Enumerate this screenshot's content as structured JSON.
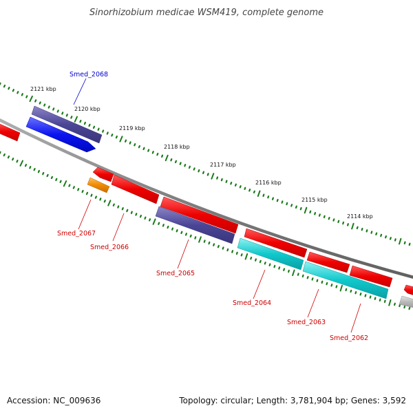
{
  "title": "Sinorhizobium medicae WSM419, complete genome",
  "footer": {
    "accession": "Accession: NC_009636",
    "summary": "Topology: circular; Length: 3,781,904 bp; Genes: 3,592"
  },
  "ticks": [
    "2121 kbp",
    "2120 kbp",
    "2119 kbp",
    "2118 kbp",
    "2117 kbp",
    "2116 kbp",
    "2115 kbp",
    "2114 kbp"
  ],
  "genes": [
    {
      "name": "Smed_2068",
      "label_color": "#0000cc"
    },
    {
      "name": "Smed_2067",
      "label_color": "#cc0000"
    },
    {
      "name": "Smed_2066",
      "label_color": "#cc0000"
    },
    {
      "name": "Smed_2065",
      "label_color": "#cc0000"
    },
    {
      "name": "Smed_2064",
      "label_color": "#cc0000"
    },
    {
      "name": "Smed_2063",
      "label_color": "#cc0000"
    },
    {
      "name": "Smed_2062",
      "label_color": "#cc0000"
    }
  ],
  "colors": {
    "backbone": "#808080",
    "tick": "#1a7a1a",
    "blue": "#0a14ee",
    "navy": "#4b4596",
    "red": "#ee0000",
    "orange": "#f08a00",
    "cyan": "#10c8cc",
    "gray": "#b8b8b8"
  }
}
